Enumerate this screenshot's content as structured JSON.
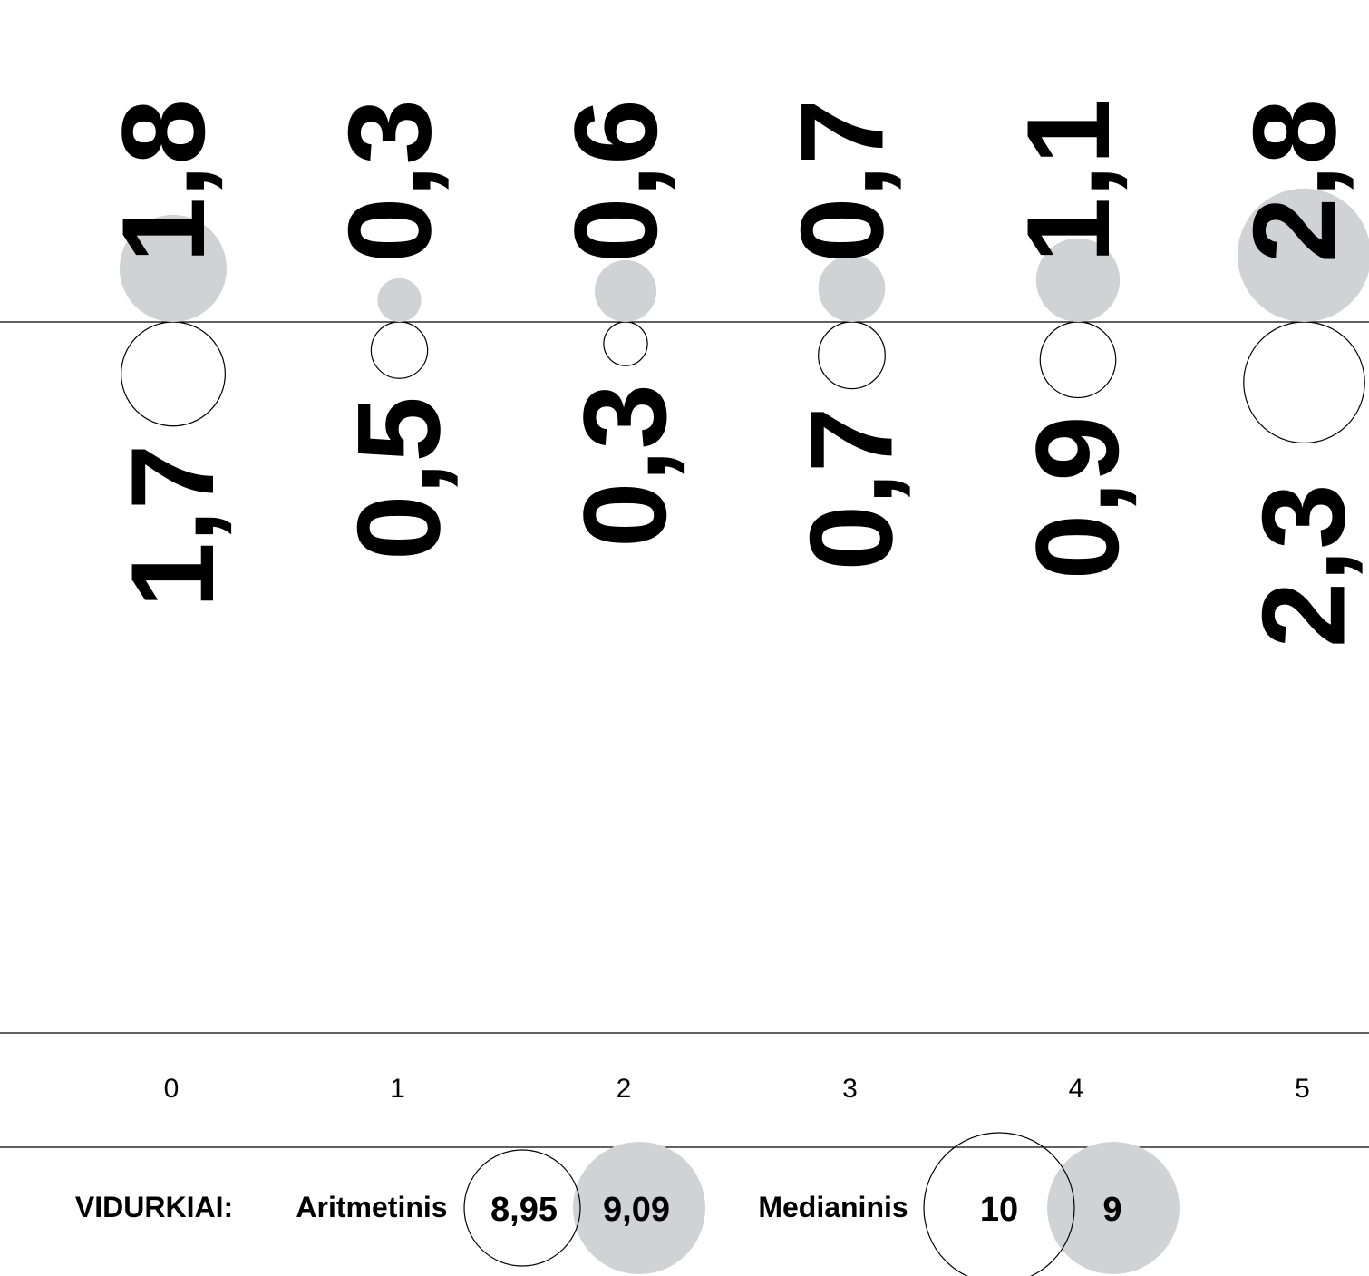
{
  "chart_data": {
    "type": "scatter",
    "title": "",
    "xlabel": "",
    "ylabel": "",
    "categories": [
      "0",
      "1",
      "2",
      "3",
      "4",
      "5"
    ],
    "series": [
      {
        "values": [
          1.8,
          0.3,
          0.6,
          0.7,
          1.1,
          2.8
        ],
        "labels": [
          "1,8",
          "0,3",
          "0,6",
          "0,7",
          "1,1",
          "2,8"
        ],
        "color": "#d1d2d4",
        "style": "filled"
      },
      {
        "values": [
          1.7,
          0.5,
          0.3,
          0.7,
          0.9,
          2.3
        ],
        "labels": [
          "1,7",
          "0,5",
          "0,3",
          "0,7",
          "0,9",
          "2,3"
        ],
        "color": "#ffffff",
        "style": "outline"
      }
    ],
    "grid": false,
    "legend": "none"
  },
  "averages": {
    "heading": "VIDURKIAI:",
    "groups": [
      {
        "label": "Aritmetinis",
        "outline_value": "8,95",
        "filled_value": "9,09"
      },
      {
        "label": "Medianinis",
        "outline_value": "10",
        "filled_value": "9"
      }
    ]
  },
  "colors": {
    "filled": "#d1d2d4",
    "outline": "#000000",
    "line": "#000000"
  }
}
